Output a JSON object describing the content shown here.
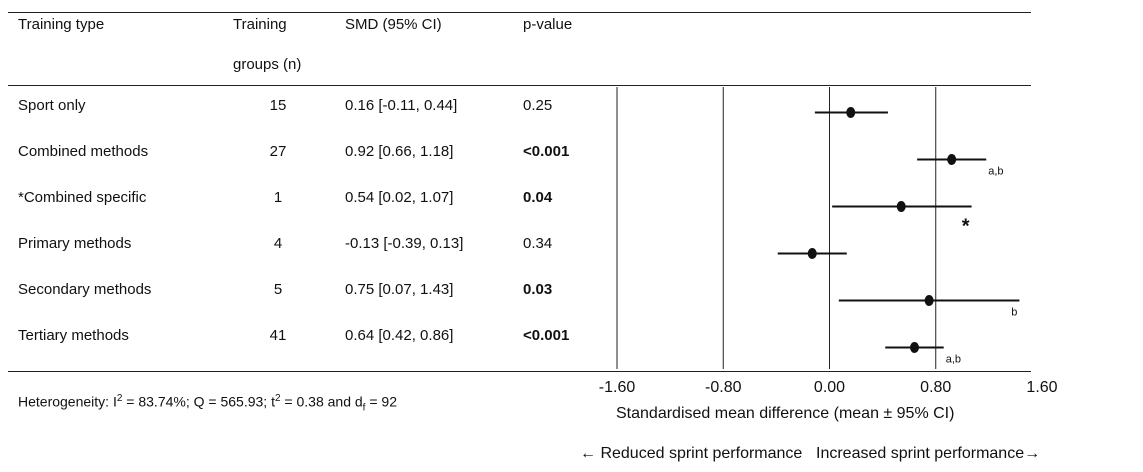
{
  "table": {
    "headers": {
      "type": "Training type",
      "groups_l1": "Training",
      "groups_l2": "groups (n)",
      "smd": "SMD (95% CI)",
      "p": "p-value"
    },
    "rows": [
      {
        "type": "Sport only",
        "n": "15",
        "smd": "0.16 [-0.11, 0.44]",
        "p": "0.25",
        "p_bold": false
      },
      {
        "type": "Combined methods",
        "n": "27",
        "smd": "0.92 [0.66, 1.18]",
        "p": "<0.001",
        "p_bold": true
      },
      {
        "type": "*Combined specific",
        "n": "1",
        "smd": "0.54 [0.02, 1.07]",
        "p": "0.04",
        "p_bold": true
      },
      {
        "type": "Primary methods",
        "n": "4",
        "smd": "-0.13 [-0.39, 0.13]",
        "p": "0.34",
        "p_bold": false
      },
      {
        "type": "Secondary methods",
        "n": "5",
        "smd": "0.75 [0.07, 1.43]",
        "p": "0.03",
        "p_bold": true
      },
      {
        "type": "Tertiary methods",
        "n": "41",
        "smd": "0.64 [0.42, 0.86]",
        "p": "<0.001",
        "p_bold": true
      }
    ]
  },
  "heterogeneity": {
    "prefix": "Heterogeneity: I",
    "i2_sup": "2",
    "i2_val": " = 83.74%; Q = 565.93; t",
    "t2_sup": "2",
    "t2_val": " = 0.38 and d",
    "df_sub": "f",
    "df_val": " = 92"
  },
  "chart_data": {
    "type": "forest",
    "categories": [
      "Sport only",
      "Combined methods",
      "*Combined specific",
      "Primary methods",
      "Secondary methods",
      "Tertiary methods"
    ],
    "series": [
      {
        "values": [
          0.16,
          0.92,
          0.54,
          -0.13,
          0.75,
          0.64
        ],
        "ci_low": [
          -0.11,
          0.66,
          0.02,
          -0.39,
          0.07,
          0.42
        ],
        "ci_high": [
          0.44,
          1.18,
          1.07,
          0.13,
          1.43,
          0.86
        ]
      }
    ],
    "annotations": [
      "",
      "a,b",
      "*",
      "",
      "b",
      "a,b"
    ],
    "xlim": [
      -1.6,
      1.6
    ],
    "xticks": [
      "-1.60",
      "-0.80",
      "0.00",
      "0.80",
      "1.60"
    ],
    "xtick_values": [
      -1.6,
      -0.8,
      0.0,
      0.8,
      1.6
    ],
    "xlabel": "Standardised mean difference (mean ± 95% CI)",
    "arrow_left": "← Reduced sprint performance",
    "arrow_right": "Increased sprint performance→",
    "grid": true
  }
}
